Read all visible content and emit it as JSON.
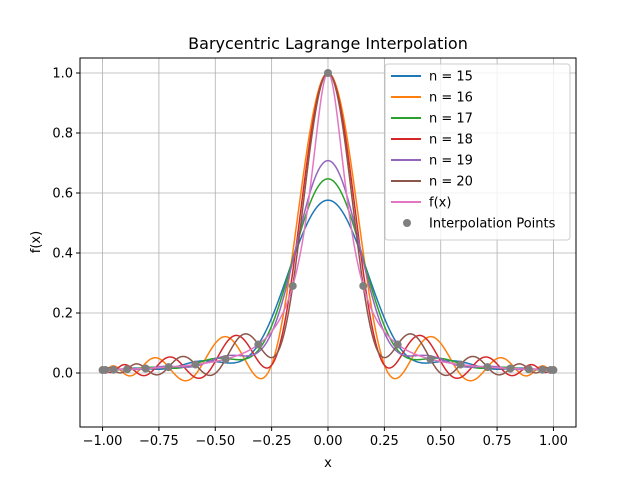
{
  "chart_data": {
    "type": "line",
    "title": "Barycentric Lagrange Interpolation",
    "xlabel": "x",
    "ylabel": "f(x)",
    "xlim": [
      -1.1,
      1.1
    ],
    "ylim": [
      -0.18,
      1.05
    ],
    "xticks": [
      -1.0,
      -0.75,
      -0.5,
      -0.25,
      0.0,
      0.25,
      0.5,
      0.75,
      1.0
    ],
    "xtick_labels": [
      "−1.00",
      "−0.75",
      "−0.50",
      "−0.25",
      "0.00",
      "0.25",
      "0.50",
      "0.75",
      "1.00"
    ],
    "yticks": [
      0.0,
      0.2,
      0.4,
      0.6,
      0.8,
      1.0
    ],
    "ytick_labels": [
      "0.0",
      "0.2",
      "0.4",
      "0.6",
      "0.8",
      "1.0"
    ],
    "grid": true,
    "legend_position": "top-right",
    "function": "1/(1+100x^2)",
    "series": [
      {
        "name": "n = 15",
        "color": "#1f77b4",
        "n": 15,
        "kind": "interp"
      },
      {
        "name": "n = 16",
        "color": "#ff7f0e",
        "n": 16,
        "kind": "interp"
      },
      {
        "name": "n = 17",
        "color": "#2ca02c",
        "n": 17,
        "kind": "interp"
      },
      {
        "name": "n = 18",
        "color": "#d62728",
        "n": 18,
        "kind": "interp"
      },
      {
        "name": "n = 19",
        "color": "#9467bd",
        "n": 19,
        "kind": "interp"
      },
      {
        "name": "n = 20",
        "color": "#8c564b",
        "n": 20,
        "kind": "interp"
      },
      {
        "name": "f(x)",
        "color": "#e377c2",
        "kind": "function"
      },
      {
        "name": "Interpolation Points",
        "color": "#7f7f7f",
        "kind": "points",
        "n": 20
      }
    ]
  }
}
